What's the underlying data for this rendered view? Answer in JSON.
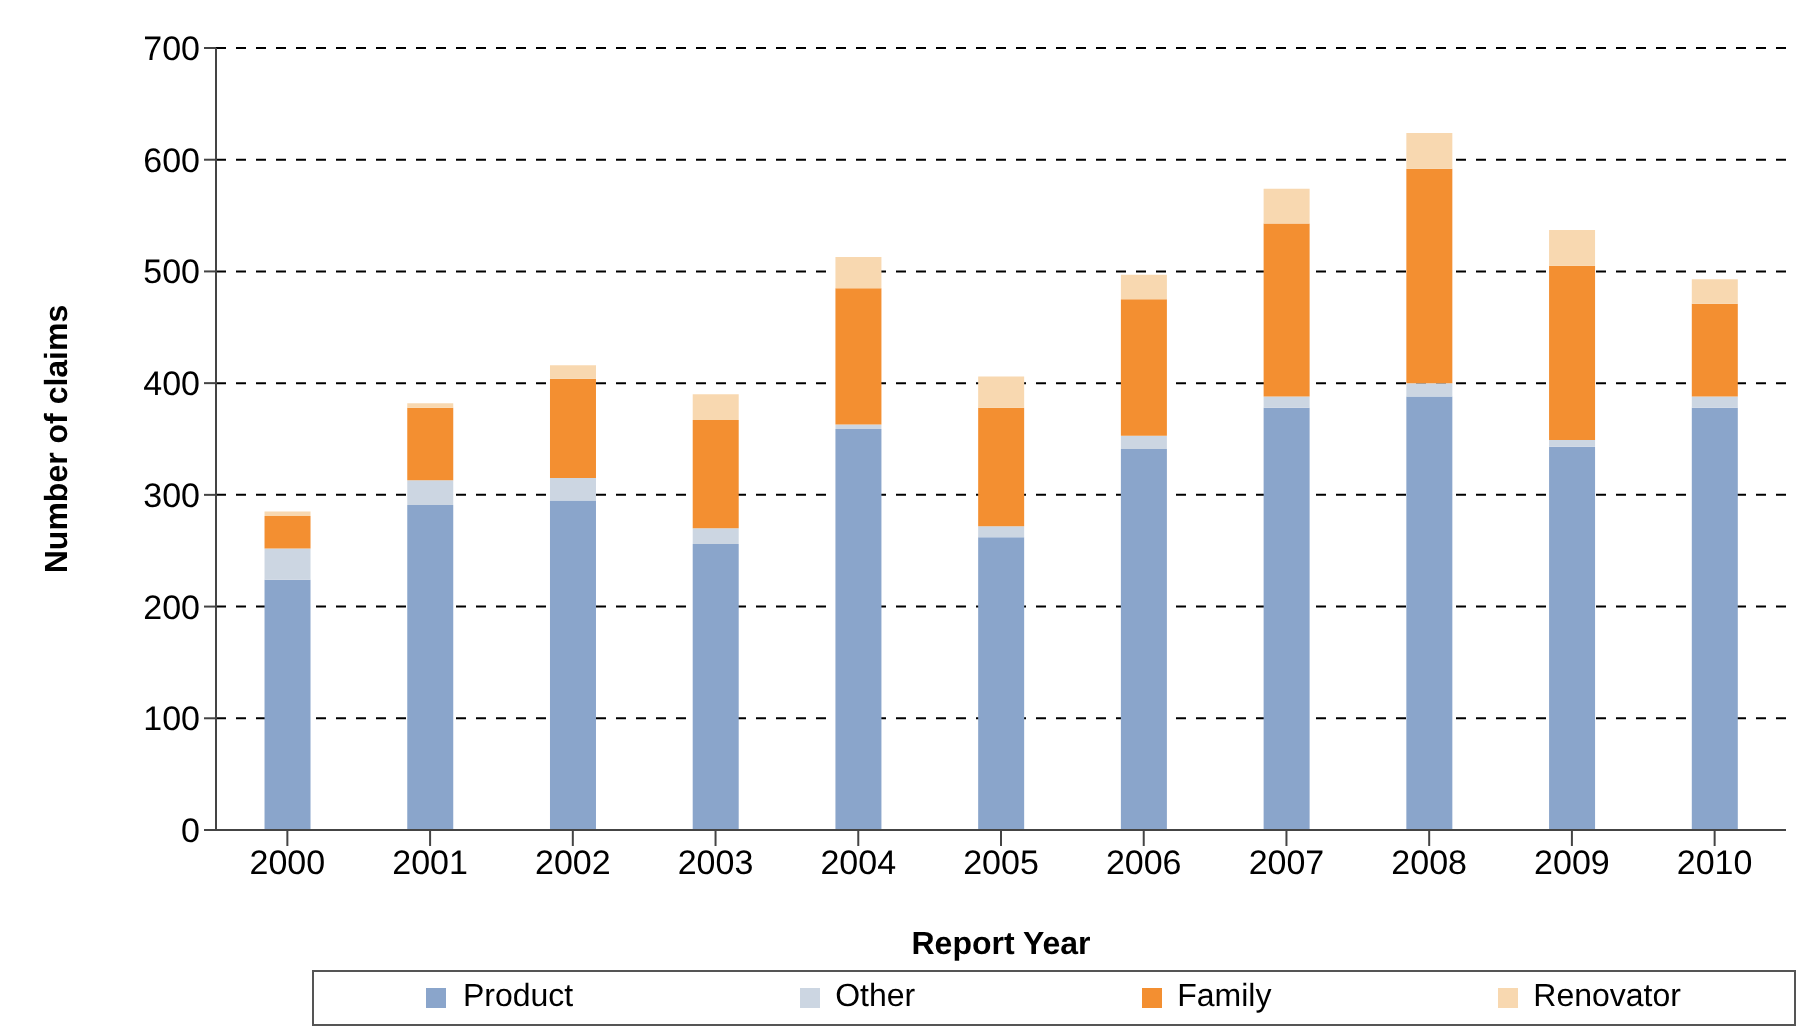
{
  "chart_data": {
    "type": "bar",
    "stacked": true,
    "xlabel": "Report Year",
    "ylabel": "Number of claims",
    "categories": [
      "2000",
      "2001",
      "2002",
      "2003",
      "2004",
      "2005",
      "2006",
      "2007",
      "2008",
      "2009",
      "2010"
    ],
    "series": [
      {
        "name": "Product",
        "color": "#8aa5cb",
        "values": [
          224,
          291,
          295,
          256,
          359,
          262,
          341,
          378,
          388,
          343,
          378
        ]
      },
      {
        "name": "Other",
        "color": "#ccd6e2",
        "values": [
          28,
          22,
          20,
          14,
          4,
          10,
          12,
          10,
          12,
          6,
          10
        ]
      },
      {
        "name": "Family",
        "color": "#f38f31",
        "values": [
          29,
          65,
          89,
          97,
          122,
          106,
          122,
          155,
          192,
          156,
          83
        ]
      },
      {
        "name": "Renovator",
        "color": "#f8d8b0",
        "values": [
          4,
          4,
          12,
          23,
          28,
          28,
          22,
          31,
          32,
          32,
          22
        ]
      }
    ],
    "ylim": [
      0,
      700
    ],
    "yticks": [
      0,
      100,
      200,
      300,
      400,
      500,
      600,
      700
    ],
    "grid": "y",
    "legend": "bottom"
  }
}
